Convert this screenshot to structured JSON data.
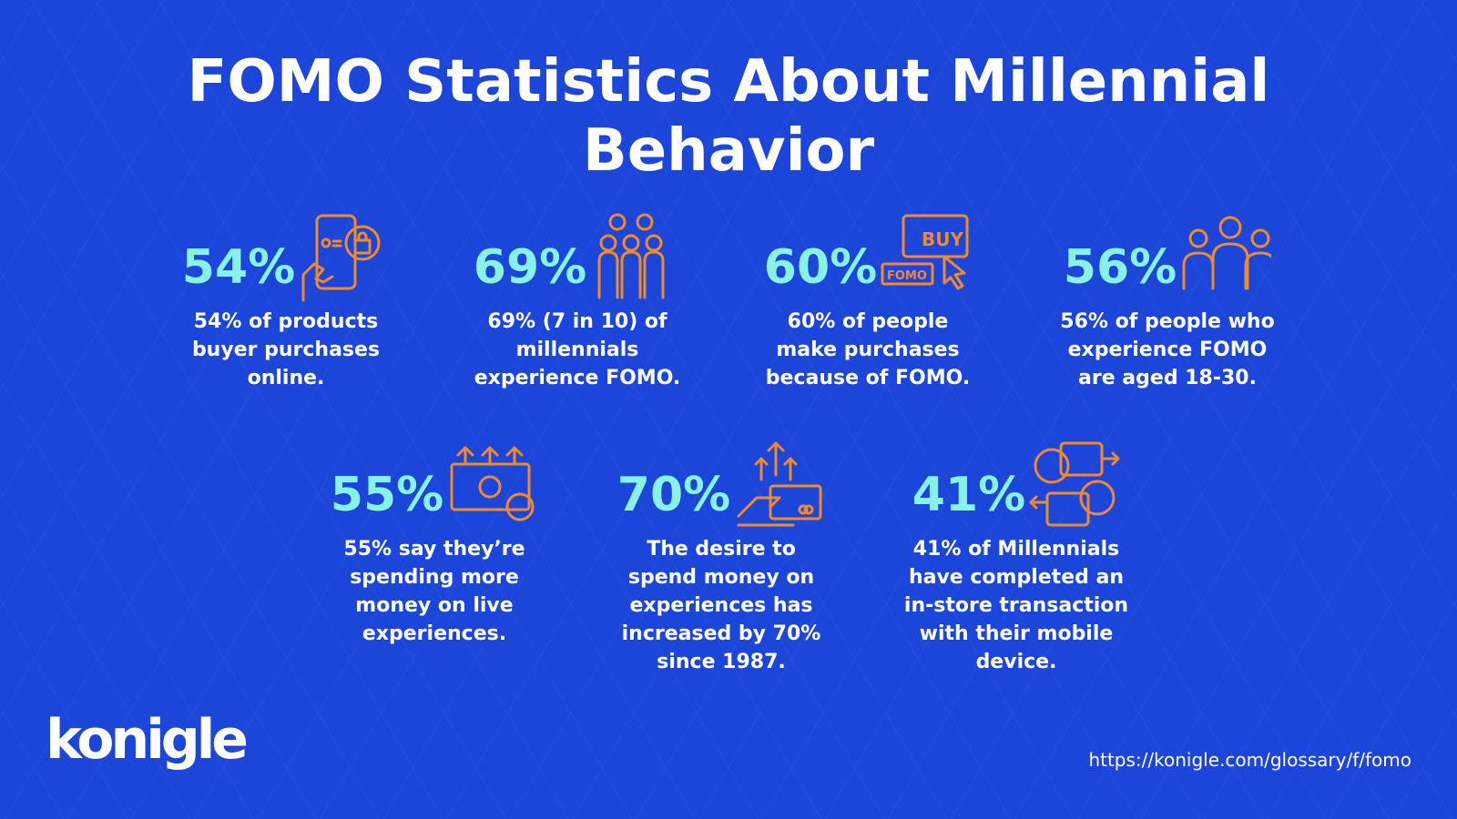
{
  "title": {
    "line1": "FOMO Statistics About Millennial",
    "line2": "Behavior"
  },
  "colors": {
    "background": "#1c45d9",
    "percent": "#86f3e6",
    "icon": "#f08a2c",
    "text": "#ffffff"
  },
  "stats": [
    {
      "percent": "54%",
      "icon": "phone-shopping-bag-icon",
      "lines": [
        "54% of products",
        "buyer purchases",
        "online."
      ]
    },
    {
      "percent": "69%",
      "icon": "people-group-icon",
      "lines": [
        "69% (7 in 10) of",
        "millennials",
        "experience FOMO."
      ]
    },
    {
      "percent": "60%",
      "icon": "buy-fomo-click-icon",
      "lines": [
        "60% of people",
        "make purchases",
        "because of FOMO."
      ]
    },
    {
      "percent": "56%",
      "icon": "three-people-icon",
      "lines": [
        "56% of people who",
        "experience FOMO",
        "are aged 18-30."
      ]
    },
    {
      "percent": "55%",
      "icon": "money-rising-icon",
      "lines": [
        "55% say they’re",
        "spending more",
        "money on live",
        "experiences."
      ]
    },
    {
      "percent": "70%",
      "icon": "hand-card-arrows-icon",
      "lines": [
        "The desire to",
        "spend money on",
        "experiences has",
        "increased by 70%",
        "since 1987."
      ]
    },
    {
      "percent": "41%",
      "icon": "money-exchange-icon",
      "lines": [
        "41% of Millennials",
        "have completed an",
        "in-store transaction",
        "with their mobile",
        "device."
      ]
    }
  ],
  "footer": {
    "logo": "konigle",
    "url": "https://konigle.com/glossary/f/fomo"
  },
  "icon_text": {
    "buy": "BUY",
    "fomo": "FOMO"
  }
}
